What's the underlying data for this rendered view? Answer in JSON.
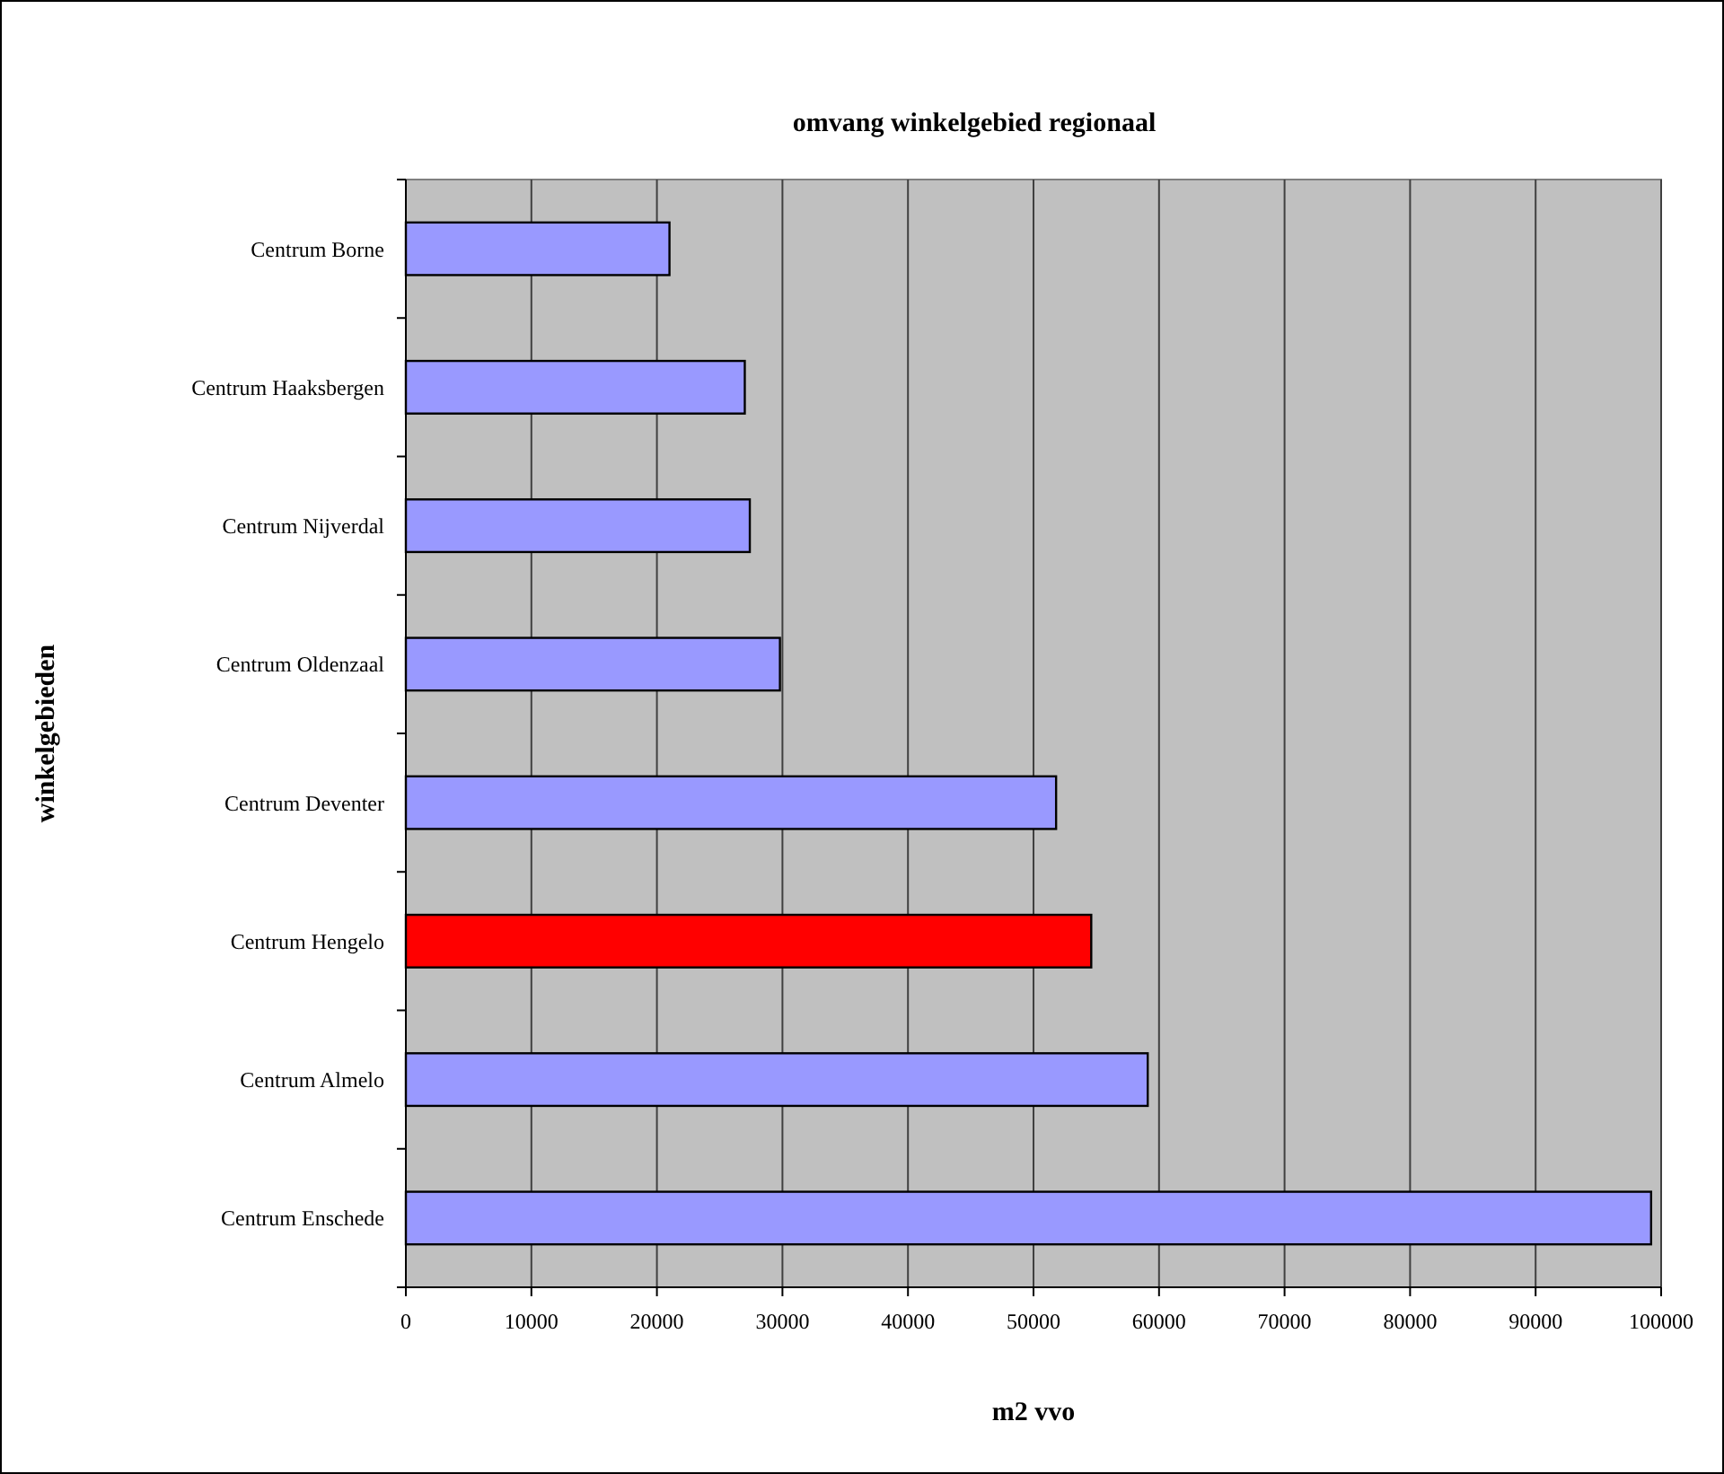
{
  "chart_data": {
    "type": "bar",
    "orientation": "horizontal",
    "title": "omvang winkelgebied regionaal",
    "xlabel": "m2 vvo",
    "ylabel": "winkelgebieden",
    "categories": [
      "Centrum Borne",
      "Centrum Haaksbergen",
      "Centrum Nijverdal",
      "Centrum Oldenzaal",
      "Centrum Deventer",
      "Centrum Hengelo",
      "Centrum Almelo",
      "Centrum Enschede"
    ],
    "values": [
      21000,
      27000,
      27400,
      29800,
      51800,
      54600,
      59100,
      99200
    ],
    "colors": [
      "#9999ff",
      "#9999ff",
      "#9999ff",
      "#9999ff",
      "#9999ff",
      "#ff0000",
      "#9999ff",
      "#9999ff"
    ],
    "xlim": [
      0,
      100000
    ],
    "xticks": [
      0,
      10000,
      20000,
      30000,
      40000,
      50000,
      60000,
      70000,
      80000,
      90000,
      100000
    ],
    "grid": "x"
  }
}
